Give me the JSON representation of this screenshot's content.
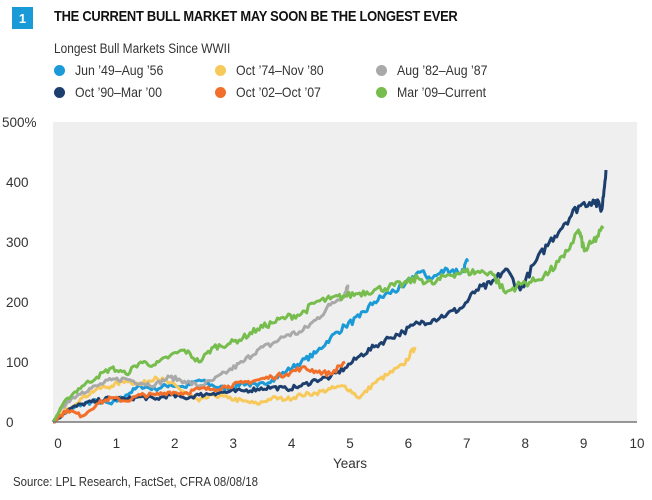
{
  "figure": {
    "number": "1",
    "title": "THE CURRENT BULL MARKET MAY SOON BE THE LONGEST EVER",
    "source": "Source: LPL Research, FactSet, CFRA   08/08/18",
    "badge_color": "#1a9ad6",
    "plot_background": "#efefef"
  },
  "chart_data": {
    "type": "line",
    "title": "THE CURRENT BULL MARKET MAY SOON BE THE LONGEST EVER",
    "subtitle": "Longest Bull Markets Since WWII",
    "xlabel": "Years",
    "ylabel": "",
    "xlim": [
      0,
      10
    ],
    "ylim": [
      0,
      500
    ],
    "x_ticks": [
      "0",
      "1",
      "2",
      "3",
      "4",
      "5",
      "6",
      "7",
      "8",
      "9",
      "10"
    ],
    "y_ticks": [
      "0",
      "100",
      "200",
      "300",
      "400",
      "500%"
    ],
    "y_tick_values": [
      0,
      100,
      200,
      300,
      400,
      500
    ],
    "x_tick_values": [
      0,
      1,
      2,
      3,
      4,
      5,
      6,
      7,
      8,
      9,
      10
    ],
    "grid": false,
    "legend_position": "top-left",
    "series": [
      {
        "name": "Jun ’49–Aug ’56",
        "color": "#1a9ad6",
        "x": [
          0,
          0.25,
          0.5,
          0.75,
          1.0,
          1.25,
          1.5,
          1.75,
          2.0,
          2.25,
          2.5,
          2.75,
          3.0,
          3.25,
          3.5,
          3.75,
          4.0,
          4.25,
          4.5,
          4.75,
          5.0,
          5.25,
          5.5,
          5.75,
          6.0,
          6.25,
          6.5,
          6.75,
          7.0,
          7.1
        ],
        "y": [
          0,
          18,
          30,
          35,
          30,
          45,
          60,
          55,
          62,
          58,
          70,
          60,
          55,
          65,
          60,
          70,
          85,
          100,
          115,
          140,
          160,
          175,
          200,
          215,
          225,
          250,
          240,
          255,
          250,
          267
        ]
      },
      {
        "name": "Oct ’74–Nov ’80",
        "color": "#f7c95a",
        "x": [
          0,
          0.25,
          0.5,
          0.75,
          1.0,
          1.25,
          1.5,
          1.75,
          2.0,
          2.25,
          2.5,
          2.75,
          3.0,
          3.25,
          3.5,
          3.75,
          4.0,
          4.25,
          4.5,
          4.75,
          5.0,
          5.25,
          5.5,
          5.75,
          6.0,
          6.2
        ],
        "y": [
          0,
          22,
          40,
          55,
          60,
          70,
          62,
          75,
          65,
          50,
          35,
          45,
          40,
          35,
          30,
          40,
          38,
          45,
          48,
          55,
          60,
          40,
          65,
          80,
          95,
          125
        ]
      },
      {
        "name": "Aug ’82–Aug ’87",
        "color": "#a9a9a9",
        "x": [
          0,
          0.25,
          0.5,
          0.75,
          1.0,
          1.25,
          1.5,
          1.75,
          2.0,
          2.25,
          2.5,
          2.75,
          3.0,
          3.25,
          3.5,
          3.75,
          4.0,
          4.25,
          4.5,
          4.75,
          5.0,
          5.05
        ],
        "y": [
          0,
          35,
          50,
          60,
          70,
          72,
          65,
          62,
          75,
          68,
          60,
          70,
          85,
          100,
          120,
          130,
          145,
          150,
          170,
          195,
          215,
          229
        ]
      },
      {
        "name": "Oct ’90–Mar ’00",
        "color": "#1c3f6e",
        "x": [
          0,
          0.25,
          0.5,
          0.75,
          1.0,
          1.25,
          1.5,
          1.75,
          2.0,
          2.25,
          2.5,
          2.75,
          3.0,
          3.25,
          3.5,
          3.75,
          4.0,
          4.25,
          4.5,
          4.75,
          5.0,
          5.25,
          5.5,
          5.75,
          6.0,
          6.25,
          6.5,
          6.75,
          7.0,
          7.25,
          7.5,
          7.75,
          8.0,
          8.25,
          8.5,
          8.75,
          9.0,
          9.25,
          9.4,
          9.47
        ],
        "y": [
          0,
          20,
          30,
          35,
          40,
          38,
          42,
          38,
          45,
          40,
          45,
          48,
          50,
          52,
          55,
          58,
          55,
          60,
          70,
          75,
          90,
          110,
          125,
          140,
          150,
          165,
          170,
          180,
          190,
          220,
          230,
          255,
          220,
          265,
          300,
          330,
          360,
          370,
          355,
          420
        ]
      },
      {
        "name": "Oct ’02–Oct ’07",
        "color": "#f26f2b",
        "x": [
          0,
          0.25,
          0.5,
          0.75,
          1.0,
          1.25,
          1.5,
          1.75,
          2.0,
          2.25,
          2.5,
          2.75,
          3.0,
          3.25,
          3.5,
          3.75,
          4.0,
          4.25,
          4.5,
          4.75,
          5.0
        ],
        "y": [
          0,
          20,
          10,
          30,
          40,
          35,
          45,
          45,
          50,
          48,
          55,
          55,
          60,
          65,
          70,
          75,
          80,
          90,
          85,
          80,
          100
        ]
      },
      {
        "name": "Mar ’09–Current",
        "color": "#76bd4d",
        "x": [
          0,
          0.25,
          0.5,
          0.75,
          1.0,
          1.25,
          1.5,
          1.75,
          2.0,
          2.25,
          2.5,
          2.75,
          3.0,
          3.25,
          3.5,
          3.75,
          4.0,
          4.25,
          4.5,
          4.75,
          5.0,
          5.25,
          5.5,
          5.75,
          6.0,
          6.25,
          6.5,
          6.75,
          7.0,
          7.25,
          7.5,
          7.75,
          8.0,
          8.25,
          8.5,
          8.75,
          9.0,
          9.1,
          9.25,
          9.42
        ],
        "y": [
          0,
          40,
          60,
          75,
          90,
          80,
          100,
          95,
          110,
          120,
          100,
          125,
          130,
          140,
          155,
          165,
          175,
          180,
          200,
          205,
          210,
          215,
          220,
          225,
          230,
          240,
          230,
          245,
          250,
          250,
          250,
          215,
          230,
          235,
          250,
          275,
          320,
          285,
          300,
          322
        ]
      }
    ]
  }
}
